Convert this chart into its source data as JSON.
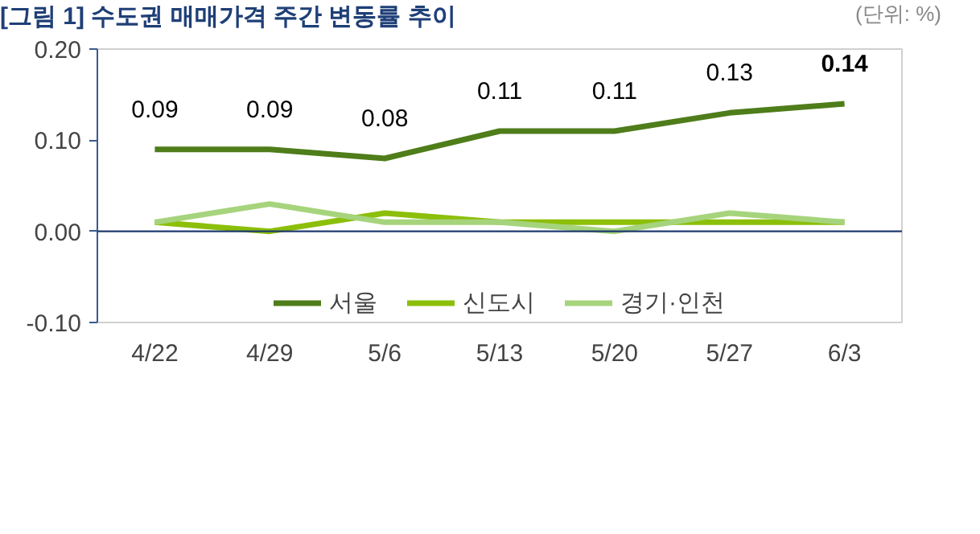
{
  "chart_data": {
    "type": "line",
    "title": "[그림 1] 수도권 매매가격 주간 변동률 추이",
    "annotations": [
      "(단위: %)"
    ],
    "categories": [
      "4/22",
      "4/29",
      "5/6",
      "5/13",
      "5/20",
      "5/27",
      "6/3"
    ],
    "ylim": [
      -0.1,
      0.2
    ],
    "yticks": [
      {
        "value": -0.1,
        "label": "-0.10"
      },
      {
        "value": 0,
        "label": "0.00"
      },
      {
        "value": 0.1,
        "label": "0.10"
      },
      {
        "value": 0.2,
        "label": "0.20"
      }
    ],
    "ref_lines": [
      {
        "axis": "y",
        "value": 0,
        "color": "#1f3a6e"
      }
    ],
    "grid": false,
    "legend": "bottom",
    "marker": "none",
    "line_style": "solid",
    "series": [
      {
        "name": "서울",
        "color": "#4e7d1a",
        "values": [
          0.09,
          0.09,
          0.08,
          0.11,
          0.11,
          0.13,
          0.14
        ],
        "value_labels": [
          "0.09",
          "0.09",
          "0.08",
          "0.11",
          "0.11",
          "0.13",
          "0.14"
        ]
      },
      {
        "name": "신도시",
        "color": "#8cbf0a",
        "values": [
          0.01,
          0.0,
          0.02,
          0.01,
          0.01,
          0.01,
          0.01
        ]
      },
      {
        "name": "경기·인천",
        "color": "#a6d47c",
        "values": [
          0.01,
          0.03,
          0.01,
          0.01,
          0.0,
          0.02,
          0.01
        ]
      }
    ]
  }
}
